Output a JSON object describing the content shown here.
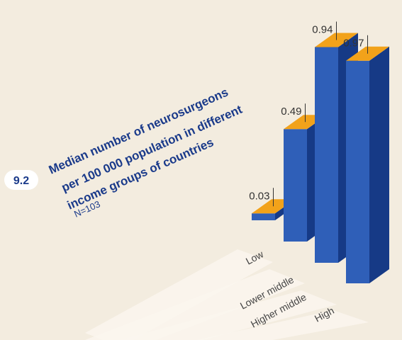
{
  "figure": {
    "number": "9.2",
    "title_lines": [
      "Median number of neurosurgeons",
      "per 100 000 population in different",
      "income groups of countries"
    ],
    "sample_note": "N=103"
  },
  "colors": {
    "background": "#f3ecdf",
    "stripe": "#faf6ee",
    "bar_front": "#2f5fb8",
    "bar_side": "#163a86",
    "bar_top": "#f2a21a",
    "badge_bg": "#ffffff",
    "title_text": "#1a3a8a",
    "label_text": "#444444"
  },
  "chart_data": {
    "type": "bar",
    "title": "Median number of neurosurgeons per 100 000 population in different income groups of countries",
    "subtitle": "N=103",
    "categories": [
      "Low",
      "Lower middle",
      "Higher middle",
      "High"
    ],
    "values": [
      0.03,
      0.49,
      0.94,
      0.97
    ],
    "value_labels": [
      "0.03",
      "0.49",
      "0.94",
      "0.97"
    ],
    "ylim": [
      0,
      1
    ],
    "grid": false,
    "legend": "none"
  }
}
